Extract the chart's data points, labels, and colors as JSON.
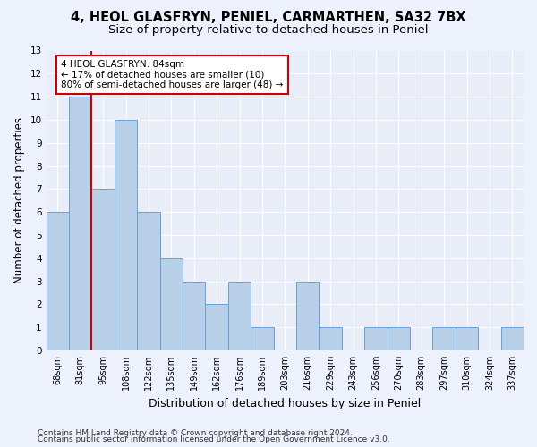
{
  "title1": "4, HEOL GLASFRYN, PENIEL, CARMARTHEN, SA32 7BX",
  "title2": "Size of property relative to detached houses in Peniel",
  "xlabel": "Distribution of detached houses by size in Peniel",
  "ylabel": "Number of detached properties",
  "categories": [
    "68sqm",
    "81sqm",
    "95sqm",
    "108sqm",
    "122sqm",
    "135sqm",
    "149sqm",
    "162sqm",
    "176sqm",
    "189sqm",
    "203sqm",
    "216sqm",
    "229sqm",
    "243sqm",
    "256sqm",
    "270sqm",
    "283sqm",
    "297sqm",
    "310sqm",
    "324sqm",
    "337sqm"
  ],
  "values": [
    6,
    11,
    7,
    10,
    6,
    4,
    3,
    2,
    3,
    1,
    0,
    3,
    1,
    0,
    1,
    1,
    0,
    1,
    1,
    0,
    1
  ],
  "bar_color": "#b8cfe8",
  "bar_edge_color": "#6a9fd8",
  "marker_line_index": 1.5,
  "annotation_title": "4 HEOL GLASFRYN: 84sqm",
  "annotation_line1": "← 17% of detached houses are smaller (10)",
  "annotation_line2": "80% of semi-detached houses are larger (48) →",
  "annotation_box_facecolor": "#ffffff",
  "annotation_box_edgecolor": "#cc0000",
  "marker_line_color": "#cc0000",
  "ylim": [
    0,
    13
  ],
  "yticks": [
    0,
    1,
    2,
    3,
    4,
    5,
    6,
    7,
    8,
    9,
    10,
    11,
    12,
    13
  ],
  "footer1": "Contains HM Land Registry data © Crown copyright and database right 2024.",
  "footer2": "Contains public sector information licensed under the Open Government Licence v3.0.",
  "background_color": "#edf1fb",
  "plot_bg_color": "#e8edf8",
  "grid_color": "#ffffff",
  "title1_fontsize": 10.5,
  "title2_fontsize": 9.5,
  "xlabel_fontsize": 9,
  "ylabel_fontsize": 8.5,
  "tick_fontsize": 7,
  "footer_fontsize": 6.5,
  "annotation_fontsize": 7.5
}
